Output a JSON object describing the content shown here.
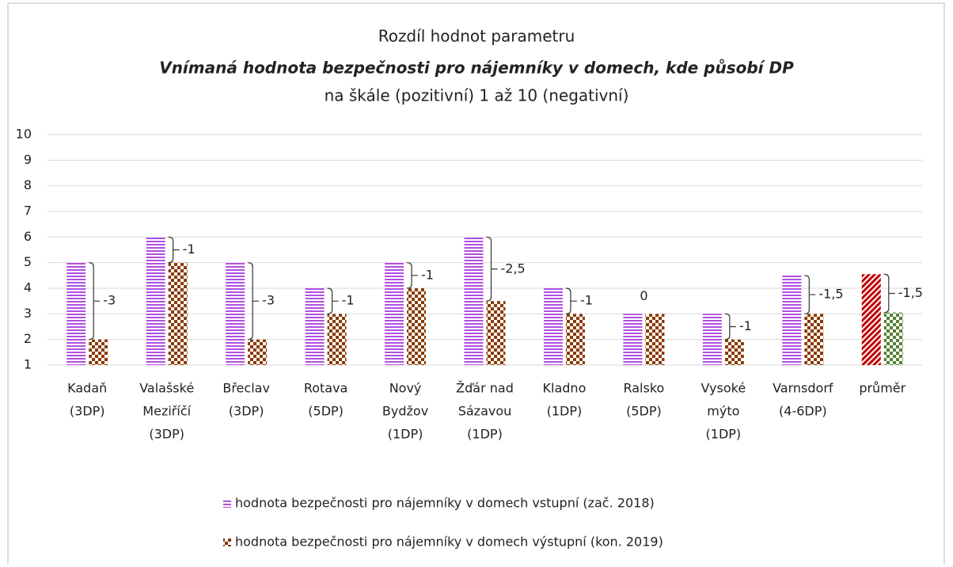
{
  "chart_data": {
    "type": "bar",
    "title": "Rozdíl hodnot parametru",
    "subtitle": "Vnímaná hodnota bezpečnosti pro nájemníky v domech, kde působí DP",
    "subtitle2": "na škále (pozitivní) 1 až 10 (negativní)",
    "categories": [
      [
        "Kadaň",
        "(3DP)"
      ],
      [
        "Valašské",
        "Meziříčí",
        "(3DP)"
      ],
      [
        "Břeclav",
        "(3DP)"
      ],
      [
        "Rotava",
        "(5DP)"
      ],
      [
        "Nový",
        "Bydžov",
        "(1DP)"
      ],
      [
        "Žďár nad",
        "Sázavou",
        "(1DP)"
      ],
      [
        "Kladno",
        "(1DP)"
      ],
      [
        "Ralsko",
        "(5DP)"
      ],
      [
        "Vysoké",
        "mýto",
        "(1DP)"
      ],
      [
        "Varnsdorf",
        "(4-6DP)"
      ],
      [
        "průměr"
      ]
    ],
    "series": [
      {
        "name": "hodnota bezpečnosti pro nájemníky v domech vstupní (zač. 2018)",
        "color": "#b04fe0",
        "colors": [
          "#b04fe0",
          "#b04fe0",
          "#b04fe0",
          "#b04fe0",
          "#b04fe0",
          "#b04fe0",
          "#b04fe0",
          "#b04fe0",
          "#b04fe0",
          "#b04fe0",
          "#c00000"
        ],
        "values": [
          5,
          6,
          5,
          4,
          5,
          6,
          4,
          3,
          3,
          4.5,
          4.55
        ]
      },
      {
        "name": "hodnota bezpečnosti pro nájemníky v domech výstupní  (kon. 2019)",
        "color": "#8b3a00",
        "colors": [
          "#8b3a00",
          "#8b3a00",
          "#8b3a00",
          "#8b3a00",
          "#8b3a00",
          "#8b3a00",
          "#8b3a00",
          "#8b3a00",
          "#8b3a00",
          "#8b3a00",
          "#548235"
        ],
        "values": [
          2,
          5,
          2,
          3,
          4,
          3.5,
          3,
          3,
          2,
          3,
          3.05
        ]
      }
    ],
    "differences": {
      "values": [
        -3,
        -1,
        -3,
        -1,
        -1,
        -2.5,
        -1,
        0,
        -1,
        -1.5,
        -1.5
      ],
      "value_labels": [
        "-3",
        "-1",
        "-3",
        "-1",
        "-1",
        "-2,5",
        "-1",
        "0",
        "-1",
        "-1,5",
        "-1,5"
      ]
    },
    "ylim": [
      1,
      10
    ],
    "yticks": [
      1,
      2,
      3,
      4,
      5,
      6,
      7,
      8,
      9,
      10
    ],
    "grid": true,
    "legend": "bottom"
  }
}
